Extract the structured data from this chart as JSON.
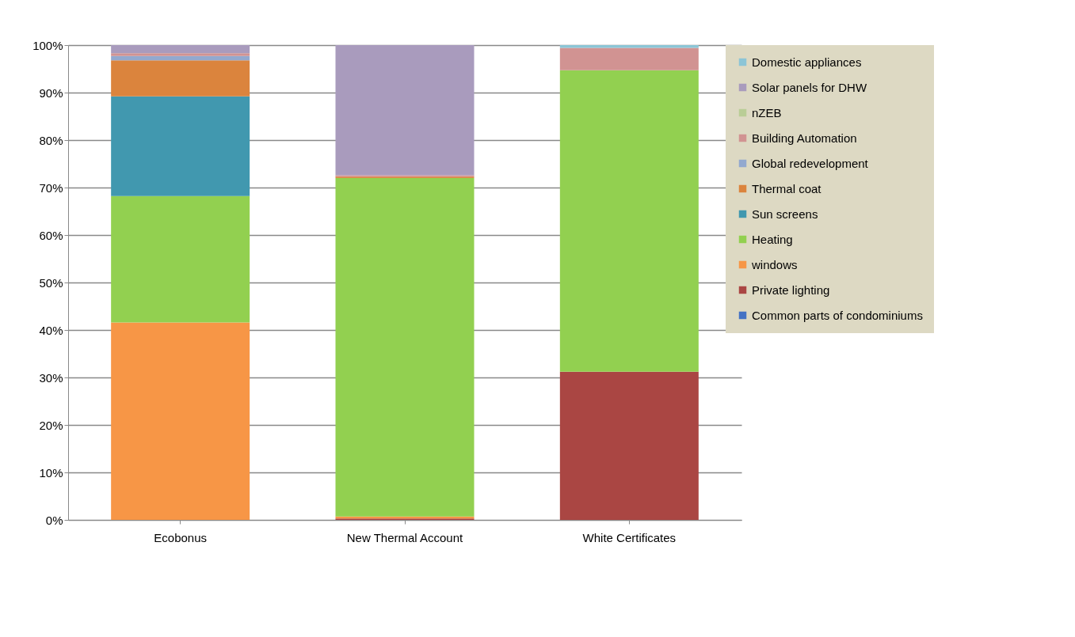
{
  "chart_data": {
    "type": "bar",
    "stacked": true,
    "categories": [
      "Ecobonus",
      "New Thermal Account",
      "White Certificates"
    ],
    "series": [
      {
        "name": "Common parts of condominiums",
        "color": "#4472c4",
        "values": [
          0,
          0,
          0
        ]
      },
      {
        "name": "Private lighting",
        "color": "#aa4643",
        "values": [
          0,
          0.3,
          31.2
        ]
      },
      {
        "name": "windows",
        "color": "#f79646",
        "values": [
          41.6,
          0.4,
          0
        ]
      },
      {
        "name": "Heating",
        "color": "#92d050",
        "values": [
          26.6,
          71.3,
          63.5
        ]
      },
      {
        "name": "Sun screens",
        "color": "#4198af",
        "values": [
          21.0,
          0,
          0
        ]
      },
      {
        "name": "Thermal coat",
        "color": "#db843d",
        "values": [
          7.6,
          0.3,
          0
        ]
      },
      {
        "name": "Global redevelopment",
        "color": "#93a9cf",
        "values": [
          0.9,
          0,
          0
        ]
      },
      {
        "name": "Building Automation",
        "color": "#d19392",
        "values": [
          0.6,
          0.3,
          4.7
        ]
      },
      {
        "name": "nZEB",
        "color": "#b9cd96",
        "values": [
          0,
          0,
          0
        ]
      },
      {
        "name": "Solar panels for DHW",
        "color": "#a99bbd",
        "values": [
          1.7,
          27.4,
          0
        ]
      },
      {
        "name": "Domestic appliances",
        "color": "#8cc5d6",
        "values": [
          0,
          0,
          0.6
        ]
      }
    ],
    "ylim": [
      0,
      100
    ],
    "yticks": [
      {
        "value": 0,
        "label": "0%"
      },
      {
        "value": 10,
        "label": "10%"
      },
      {
        "value": 20,
        "label": "20%"
      },
      {
        "value": 30,
        "label": "30%"
      },
      {
        "value": 40,
        "label": "40%"
      },
      {
        "value": 50,
        "label": "50%"
      },
      {
        "value": 60,
        "label": "60%"
      },
      {
        "value": 70,
        "label": "70%"
      },
      {
        "value": 80,
        "label": "80%"
      },
      {
        "value": 90,
        "label": "90%"
      },
      {
        "value": 100,
        "label": "100%"
      }
    ],
    "grid": "y",
    "legend": "right"
  }
}
